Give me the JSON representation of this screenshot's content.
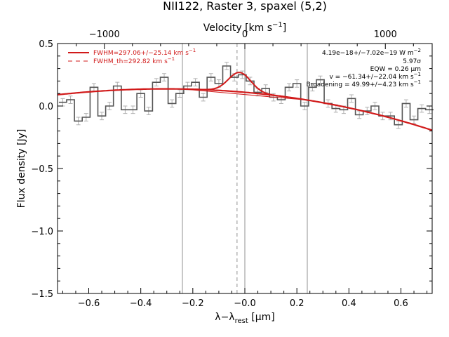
{
  "chart_data": {
    "type": "line",
    "title": "NII122, Raster 3, spaxel (5,2)",
    "xlabel_main": "λ−λ",
    "xlabel_sub": "rest",
    "xlabel_unit": " [μm]",
    "x2label_main": "Velocity [km s",
    "x2label_sup": "−1",
    "x2label_close": "]",
    "ylabel": "Flux density [Jy]",
    "xlim": [
      -0.72,
      0.72
    ],
    "ylim": [
      -1.5,
      0.5
    ],
    "xticks": [
      {
        "v": -0.6,
        "label": "−0.6"
      },
      {
        "v": -0.4,
        "label": "−0.4"
      },
      {
        "v": -0.2,
        "label": "−0.2"
      },
      {
        "v": 0.0,
        "label": "−0.0"
      },
      {
        "v": 0.2,
        "label": "0.2"
      },
      {
        "v": 0.4,
        "label": "0.4"
      },
      {
        "v": 0.6,
        "label": "0.6"
      }
    ],
    "yticks": [
      {
        "v": 0.5,
        "label": "0.5"
      },
      {
        "v": 0.0,
        "label": "0.0"
      },
      {
        "v": -0.5,
        "label": "−0.5"
      },
      {
        "v": -1.0,
        "label": "−1.0"
      },
      {
        "v": -1.5,
        "label": "−1.5"
      }
    ],
    "x2ticks": [
      {
        "pos": -0.54,
        "label": "−1000"
      },
      {
        "pos": 0.0,
        "label": "0"
      },
      {
        "pos": 0.54,
        "label": "1000"
      }
    ],
    "vlines_solid": [
      -0.24,
      0.0,
      0.24
    ],
    "vline_dashed": -0.03,
    "spectrum": {
      "x": [
        -0.7,
        -0.67,
        -0.64,
        -0.61,
        -0.58,
        -0.55,
        -0.52,
        -0.49,
        -0.46,
        -0.43,
        -0.4,
        -0.37,
        -0.34,
        -0.31,
        -0.28,
        -0.25,
        -0.22,
        -0.19,
        -0.16,
        -0.13,
        -0.1,
        -0.07,
        -0.04,
        -0.01,
        0.02,
        0.05,
        0.08,
        0.11,
        0.14,
        0.17,
        0.2,
        0.23,
        0.26,
        0.29,
        0.32,
        0.35,
        0.38,
        0.41,
        0.44,
        0.47,
        0.5,
        0.53,
        0.56,
        0.59,
        0.62,
        0.65,
        0.68,
        0.71
      ],
      "y": [
        0.03,
        0.05,
        -0.12,
        -0.09,
        0.15,
        -0.08,
        0.0,
        0.16,
        -0.03,
        -0.03,
        0.1,
        -0.04,
        0.19,
        0.23,
        0.02,
        0.1,
        0.16,
        0.19,
        0.07,
        0.23,
        0.18,
        0.32,
        0.23,
        0.25,
        0.2,
        0.11,
        0.14,
        0.07,
        0.05,
        0.15,
        0.18,
        0.0,
        0.15,
        0.21,
        0.02,
        -0.02,
        -0.03,
        0.06,
        -0.07,
        -0.04,
        0.0,
        -0.08,
        -0.08,
        -0.15,
        0.02,
        -0.11,
        -0.02,
        -0.03
      ],
      "err": 0.03
    },
    "continuum_poly": [
      0.1098,
      -0.182,
      -0.312,
      -0.03
    ],
    "gaussian": {
      "amplitude": 0.155,
      "center": -0.02,
      "sigma": 0.043
    },
    "legend": [
      {
        "label": "FWHM=297.06+/−25.14 km s",
        "sup": "−1",
        "style": "solid"
      },
      {
        "label": "FWHM_th=292.82 km s",
        "sup": "−1",
        "style": "dashed"
      }
    ],
    "annotations": [
      {
        "text": "4.19e−18+/−7.02e−19 W m",
        "sup": "−2"
      },
      {
        "text": "5.97σ",
        "sup": ""
      },
      {
        "text": "EQW = 0.26 μm",
        "sup": ""
      },
      {
        "text": "v = −61.34+/−22.04 km s",
        "sup": "−1"
      },
      {
        "text": "Broadening = 49.99+/−4.23 km s",
        "sup": "−1"
      }
    ],
    "colors": {
      "fit": "#d11a1a",
      "spectrum": "#555555",
      "error": "#b0b0b0",
      "axis": "#000000",
      "vline": "#909090"
    }
  }
}
